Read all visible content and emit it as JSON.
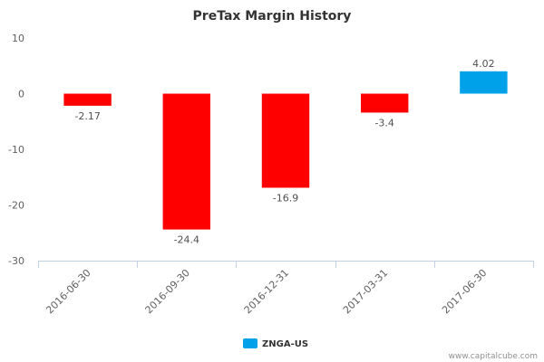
{
  "chart_data": {
    "type": "bar",
    "title": "PreTax Margin History",
    "categories": [
      "2016-06-30",
      "2016-09-30",
      "2016-12-31",
      "2017-03-31",
      "2017-06-30"
    ],
    "series": [
      {
        "name": "ZNGA-US",
        "values": [
          -2.17,
          -24.4,
          -16.9,
          -3.4,
          4.02
        ],
        "data_labels": [
          "-2.17",
          "-24.4",
          "-16.9",
          "-3.4",
          "4.02"
        ],
        "negative_color": "#ff0000",
        "positive_color": "#00a1e9"
      }
    ],
    "ylim": [
      -30,
      10
    ],
    "yticks": [
      10,
      0,
      -10,
      -20,
      -30
    ],
    "xlabel": "",
    "ylabel": "",
    "grid": false,
    "legend_position": "bottom-center",
    "x_tick_rotation": "-45"
  },
  "legend": {
    "label": "ZNGA-US",
    "color": "#00a1e9"
  },
  "credit": "www.capitalcube.com",
  "colors": {
    "axis": "#c0d0e0",
    "text": "#606060"
  }
}
